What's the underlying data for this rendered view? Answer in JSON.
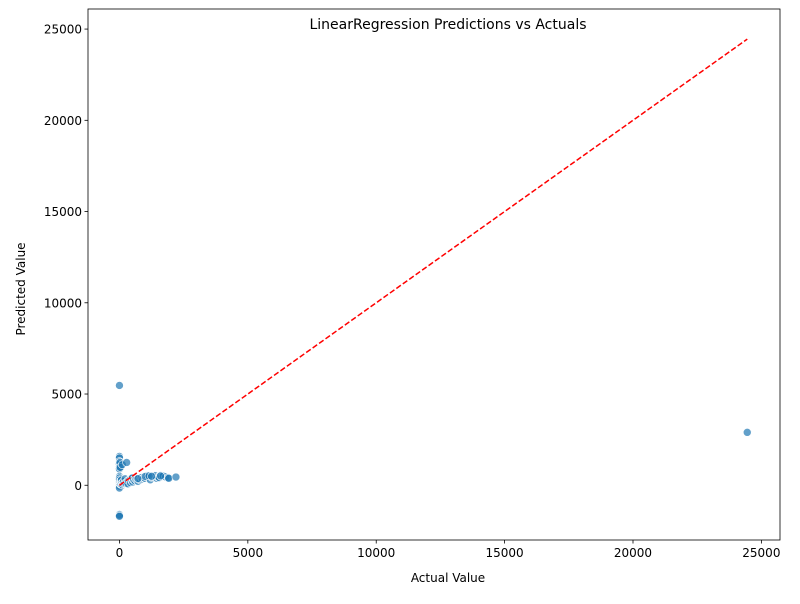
{
  "chart_data": {
    "type": "scatter",
    "title": "LinearRegression Predictions vs Actuals",
    "xlabel": "Actual Value",
    "ylabel": "Predicted Value",
    "xlim": [
      -1225,
      25725
    ],
    "ylim": [
      -3000,
      26100
    ],
    "xticks": [
      0,
      5000,
      10000,
      15000,
      20000,
      25000
    ],
    "yticks": [
      0,
      5000,
      10000,
      15000,
      20000,
      25000
    ],
    "xtick_labels": [
      "0",
      "5000",
      "10000",
      "15000",
      "20000",
      "25000"
    ],
    "ytick_labels": [
      "0",
      "5000",
      "10000",
      "15000",
      "20000",
      "25000"
    ],
    "grid": false,
    "point_color": "#1f77b4",
    "point_opacity": 0.7,
    "reference_line": {
      "style": "dashed",
      "color": "#ff0000",
      "x": [
        0,
        24450
      ],
      "y": [
        0,
        24450
      ]
    },
    "points": [
      [
        0,
        5470
      ],
      [
        24450,
        2900
      ],
      [
        0,
        1580
      ],
      [
        0,
        1500
      ],
      [
        0,
        1300
      ],
      [
        0,
        1200
      ],
      [
        0,
        1150
      ],
      [
        0,
        1000
      ],
      [
        0,
        900
      ],
      [
        0,
        480
      ],
      [
        0,
        400
      ],
      [
        0,
        300
      ],
      [
        0,
        200
      ],
      [
        0,
        100
      ],
      [
        0,
        0
      ],
      [
        0,
        -50
      ],
      [
        0,
        -150
      ],
      [
        0,
        -1600
      ],
      [
        0,
        -1650
      ],
      [
        0,
        -1700
      ],
      [
        20,
        1250
      ],
      [
        30,
        980
      ],
      [
        40,
        60
      ],
      [
        50,
        130
      ],
      [
        60,
        250
      ],
      [
        70,
        50
      ],
      [
        80,
        300
      ],
      [
        100,
        120
      ],
      [
        110,
        1130
      ],
      [
        120,
        20
      ],
      [
        150,
        90
      ],
      [
        160,
        210
      ],
      [
        200,
        100
      ],
      [
        220,
        350
      ],
      [
        250,
        120
      ],
      [
        280,
        1250
      ],
      [
        300,
        200
      ],
      [
        330,
        80
      ],
      [
        350,
        260
      ],
      [
        400,
        300
      ],
      [
        420,
        150
      ],
      [
        450,
        350
      ],
      [
        480,
        250
      ],
      [
        500,
        400
      ],
      [
        520,
        180
      ],
      [
        550,
        300
      ],
      [
        600,
        250
      ],
      [
        620,
        380
      ],
      [
        650,
        320
      ],
      [
        700,
        330
      ],
      [
        720,
        220
      ],
      [
        750,
        380
      ],
      [
        800,
        300
      ],
      [
        850,
        420
      ],
      [
        900,
        350
      ],
      [
        950,
        400
      ],
      [
        1000,
        380
      ],
      [
        1050,
        460
      ],
      [
        1100,
        420
      ],
      [
        1150,
        520
      ],
      [
        1200,
        300
      ],
      [
        1250,
        440
      ],
      [
        1300,
        480
      ],
      [
        1350,
        500
      ],
      [
        1400,
        520
      ],
      [
        1450,
        380
      ],
      [
        1500,
        450
      ],
      [
        1550,
        420
      ],
      [
        1600,
        540
      ],
      [
        1650,
        480
      ],
      [
        1700,
        500
      ],
      [
        1800,
        460
      ],
      [
        1900,
        420
      ],
      [
        1920,
        380
      ],
      [
        2200,
        450
      ],
      [
        1080,
        520
      ],
      [
        1000,
        480
      ],
      [
        1150,
        510
      ],
      [
        1250,
        490
      ],
      [
        1600,
        510
      ],
      [
        720,
        360
      ]
    ]
  }
}
